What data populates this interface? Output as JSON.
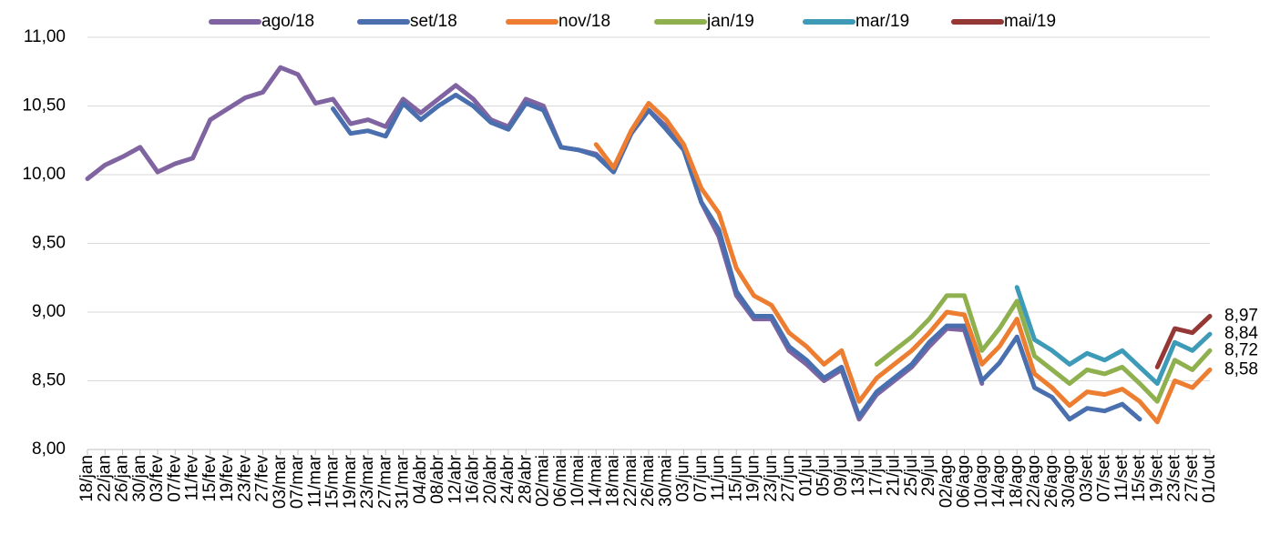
{
  "chart_data": {
    "type": "line",
    "categories": [
      "18/jan",
      "22/jan",
      "26/jan",
      "30/jan",
      "03/fev",
      "07/fev",
      "11/fev",
      "15/fev",
      "19/fev",
      "23/fev",
      "27/fev",
      "03/mar",
      "07/mar",
      "11/mar",
      "15/mar",
      "19/mar",
      "23/mar",
      "27/mar",
      "31/mar",
      "04/abr",
      "08/abr",
      "12/abr",
      "16/abr",
      "20/abr",
      "24/abr",
      "28/abr",
      "02/mai",
      "06/mai",
      "10/mai",
      "14/mai",
      "18/mai",
      "22/mai",
      "26/mai",
      "30/mai",
      "03/jun",
      "07/jun",
      "11/jun",
      "15/jun",
      "19/jun",
      "23/jun",
      "27/jun",
      "01/jul",
      "05/jul",
      "09/jul",
      "13/jul",
      "17/jul",
      "21/jul",
      "25/jul",
      "29/jul",
      "02/ago",
      "06/ago",
      "10/ago",
      "14/ago",
      "18/ago",
      "22/ago",
      "26/ago",
      "30/ago",
      "03/set",
      "07/set",
      "11/set",
      "15/set",
      "19/set",
      "23/set",
      "27/set",
      "01/out"
    ],
    "series": [
      {
        "name": "ago/18",
        "color": "#8064a2",
        "values": [
          9.97,
          10.07,
          10.13,
          10.2,
          10.02,
          10.08,
          10.12,
          10.4,
          10.48,
          10.56,
          10.6,
          10.78,
          10.73,
          10.52,
          10.55,
          10.37,
          10.4,
          10.35,
          10.55,
          10.45,
          10.55,
          10.65,
          10.55,
          10.4,
          10.35,
          10.55,
          10.5,
          10.2,
          10.18,
          10.15,
          10.02,
          10.3,
          10.47,
          10.35,
          10.2,
          9.8,
          9.55,
          9.12,
          8.95,
          8.95,
          8.72,
          8.62,
          8.5,
          8.58,
          8.22,
          8.4,
          8.5,
          8.6,
          8.75,
          8.88,
          8.87,
          8.48,
          null,
          null,
          null,
          null,
          null,
          null,
          null,
          null,
          null,
          null,
          null,
          null,
          null
        ]
      },
      {
        "name": "set/18",
        "color": "#4a6fae",
        "values": [
          null,
          null,
          null,
          null,
          null,
          null,
          null,
          null,
          null,
          null,
          null,
          null,
          null,
          null,
          10.48,
          10.3,
          10.32,
          10.28,
          10.52,
          10.4,
          10.5,
          10.58,
          10.5,
          10.38,
          10.33,
          10.52,
          10.47,
          10.2,
          10.18,
          10.14,
          10.02,
          10.3,
          10.47,
          10.33,
          10.18,
          9.8,
          9.6,
          9.15,
          8.97,
          8.97,
          8.75,
          8.65,
          8.52,
          8.6,
          8.24,
          8.42,
          8.52,
          8.62,
          8.78,
          8.9,
          8.9,
          8.5,
          8.63,
          8.82,
          8.45,
          8.38,
          8.22,
          8.3,
          8.28,
          8.33,
          8.22,
          null,
          null,
          null,
          null
        ]
      },
      {
        "name": "nov/18",
        "color": "#ed7d31",
        "values": [
          null,
          null,
          null,
          null,
          null,
          null,
          null,
          null,
          null,
          null,
          null,
          null,
          null,
          null,
          null,
          null,
          null,
          null,
          null,
          null,
          null,
          null,
          null,
          null,
          null,
          null,
          null,
          null,
          null,
          10.22,
          10.05,
          10.32,
          10.52,
          10.4,
          10.22,
          9.9,
          9.72,
          9.32,
          9.12,
          9.05,
          8.85,
          8.75,
          8.62,
          8.72,
          8.35,
          8.52,
          8.62,
          8.72,
          8.85,
          9.0,
          8.98,
          8.62,
          8.75,
          8.95,
          8.55,
          8.45,
          8.32,
          8.42,
          8.4,
          8.44,
          8.35,
          8.2,
          8.5,
          8.45,
          8.58
        ],
        "value_labels": [
          null,
          null,
          null,
          null,
          null,
          null,
          null,
          null,
          null,
          null,
          null,
          null,
          null,
          null,
          null,
          null,
          null,
          null,
          null,
          null,
          null,
          null,
          null,
          null,
          null,
          null,
          null,
          null,
          null,
          null,
          null,
          null,
          null,
          null,
          null,
          null,
          null,
          null,
          null,
          null,
          null,
          null,
          null,
          null,
          null,
          null,
          null,
          null,
          null,
          null,
          null,
          null,
          null,
          null,
          null,
          null,
          null,
          null,
          null,
          null,
          null,
          null,
          null,
          null,
          "8,58"
        ]
      },
      {
        "name": "jan/19",
        "color": "#8fb04e",
        "values": [
          null,
          null,
          null,
          null,
          null,
          null,
          null,
          null,
          null,
          null,
          null,
          null,
          null,
          null,
          null,
          null,
          null,
          null,
          null,
          null,
          null,
          null,
          null,
          null,
          null,
          null,
          null,
          null,
          null,
          null,
          null,
          null,
          null,
          null,
          null,
          null,
          null,
          null,
          null,
          null,
          null,
          null,
          null,
          null,
          null,
          8.62,
          8.72,
          8.82,
          8.95,
          9.12,
          9.12,
          8.72,
          8.88,
          9.08,
          8.68,
          8.58,
          8.48,
          8.58,
          8.55,
          8.6,
          8.48,
          8.35,
          8.65,
          8.58,
          8.72
        ],
        "value_labels": [
          null,
          null,
          null,
          null,
          null,
          null,
          null,
          null,
          null,
          null,
          null,
          null,
          null,
          null,
          null,
          null,
          null,
          null,
          null,
          null,
          null,
          null,
          null,
          null,
          null,
          null,
          null,
          null,
          null,
          null,
          null,
          null,
          null,
          null,
          null,
          null,
          null,
          null,
          null,
          null,
          null,
          null,
          null,
          null,
          null,
          null,
          null,
          null,
          null,
          null,
          null,
          null,
          null,
          null,
          null,
          null,
          null,
          null,
          null,
          null,
          null,
          null,
          null,
          null,
          "8,72"
        ]
      },
      {
        "name": "mar/19",
        "color": "#3d9bb8",
        "values": [
          null,
          null,
          null,
          null,
          null,
          null,
          null,
          null,
          null,
          null,
          null,
          null,
          null,
          null,
          null,
          null,
          null,
          null,
          null,
          null,
          null,
          null,
          null,
          null,
          null,
          null,
          null,
          null,
          null,
          null,
          null,
          null,
          null,
          null,
          null,
          null,
          null,
          null,
          null,
          null,
          null,
          null,
          null,
          null,
          null,
          null,
          null,
          null,
          null,
          null,
          null,
          null,
          null,
          9.18,
          8.8,
          8.72,
          8.62,
          8.7,
          8.65,
          8.72,
          8.6,
          8.48,
          8.78,
          8.72,
          8.84
        ],
        "value_labels": [
          null,
          null,
          null,
          null,
          null,
          null,
          null,
          null,
          null,
          null,
          null,
          null,
          null,
          null,
          null,
          null,
          null,
          null,
          null,
          null,
          null,
          null,
          null,
          null,
          null,
          null,
          null,
          null,
          null,
          null,
          null,
          null,
          null,
          null,
          null,
          null,
          null,
          null,
          null,
          null,
          null,
          null,
          null,
          null,
          null,
          null,
          null,
          null,
          null,
          null,
          null,
          null,
          null,
          null,
          null,
          null,
          null,
          null,
          null,
          null,
          null,
          null,
          null,
          null,
          "8,84"
        ]
      },
      {
        "name": "mai/19",
        "color": "#953735",
        "values": [
          null,
          null,
          null,
          null,
          null,
          null,
          null,
          null,
          null,
          null,
          null,
          null,
          null,
          null,
          null,
          null,
          null,
          null,
          null,
          null,
          null,
          null,
          null,
          null,
          null,
          null,
          null,
          null,
          null,
          null,
          null,
          null,
          null,
          null,
          null,
          null,
          null,
          null,
          null,
          null,
          null,
          null,
          null,
          null,
          null,
          null,
          null,
          null,
          null,
          null,
          null,
          null,
          null,
          null,
          null,
          null,
          null,
          null,
          null,
          null,
          null,
          8.6,
          8.88,
          8.85,
          8.97
        ],
        "value_labels": [
          null,
          null,
          null,
          null,
          null,
          null,
          null,
          null,
          null,
          null,
          null,
          null,
          null,
          null,
          null,
          null,
          null,
          null,
          null,
          null,
          null,
          null,
          null,
          null,
          null,
          null,
          null,
          null,
          null,
          null,
          null,
          null,
          null,
          null,
          null,
          null,
          null,
          null,
          null,
          null,
          null,
          null,
          null,
          null,
          null,
          null,
          null,
          null,
          null,
          null,
          null,
          null,
          null,
          null,
          null,
          null,
          null,
          null,
          null,
          null,
          null,
          null,
          null,
          null,
          "8,97"
        ]
      }
    ],
    "ylim": [
      8,
      11
    ],
    "yticks": [
      {
        "value": 8,
        "label": "8,00"
      },
      {
        "value": 8.5,
        "label": "8,50"
      },
      {
        "value": 9,
        "label": "9,00"
      },
      {
        "value": 9.5,
        "label": "9,50"
      },
      {
        "value": 10,
        "label": "10,00"
      },
      {
        "value": 10.5,
        "label": "10,50"
      },
      {
        "value": 11,
        "label": "11,00"
      }
    ],
    "grid": true,
    "legend": "top"
  }
}
